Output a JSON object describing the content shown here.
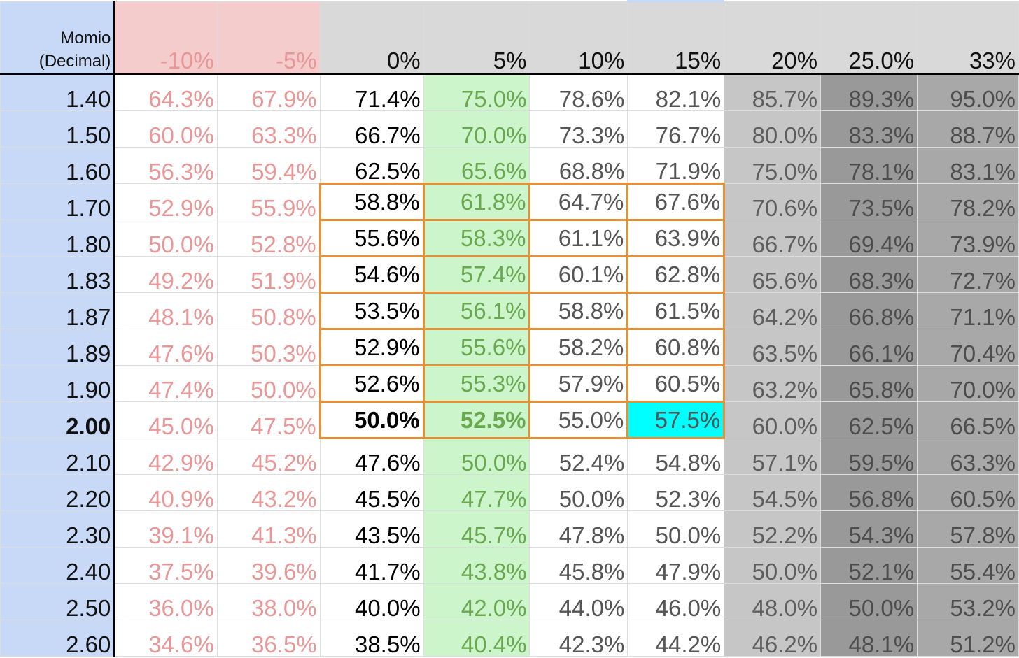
{
  "header": {
    "label_line1": "Momio",
    "label_line2": "(Decimal)",
    "columns": [
      "-10%",
      "-5%",
      "0%",
      "5%",
      "10%",
      "15%",
      "20%",
      "25.0%",
      "33%"
    ]
  },
  "rows": [
    {
      "odds": "1.40",
      "values": [
        "64.3%",
        "67.9%",
        "71.4%",
        "75.0%",
        "78.6%",
        "82.1%",
        "85.7%",
        "89.3%",
        "95.0%"
      ]
    },
    {
      "odds": "1.50",
      "values": [
        "60.0%",
        "63.3%",
        "66.7%",
        "70.0%",
        "73.3%",
        "76.7%",
        "80.0%",
        "83.3%",
        "88.7%"
      ]
    },
    {
      "odds": "1.60",
      "values": [
        "56.3%",
        "59.4%",
        "62.5%",
        "65.6%",
        "68.8%",
        "71.9%",
        "75.0%",
        "78.1%",
        "83.1%"
      ]
    },
    {
      "odds": "1.70",
      "values": [
        "52.9%",
        "55.9%",
        "58.8%",
        "61.8%",
        "64.7%",
        "67.6%",
        "70.6%",
        "73.5%",
        "78.2%"
      ]
    },
    {
      "odds": "1.80",
      "values": [
        "50.0%",
        "52.8%",
        "55.6%",
        "58.3%",
        "61.1%",
        "63.9%",
        "66.7%",
        "69.4%",
        "73.9%"
      ]
    },
    {
      "odds": "1.83",
      "values": [
        "49.2%",
        "51.9%",
        "54.6%",
        "57.4%",
        "60.1%",
        "62.8%",
        "65.6%",
        "68.3%",
        "72.7%"
      ]
    },
    {
      "odds": "1.87",
      "values": [
        "48.1%",
        "50.8%",
        "53.5%",
        "56.1%",
        "58.8%",
        "61.5%",
        "64.2%",
        "66.8%",
        "71.1%"
      ]
    },
    {
      "odds": "1.89",
      "values": [
        "47.6%",
        "50.3%",
        "52.9%",
        "55.6%",
        "58.2%",
        "60.8%",
        "63.5%",
        "66.1%",
        "70.4%"
      ]
    },
    {
      "odds": "1.90",
      "values": [
        "47.4%",
        "50.0%",
        "52.6%",
        "55.3%",
        "57.9%",
        "60.5%",
        "63.2%",
        "65.8%",
        "70.0%"
      ]
    },
    {
      "odds": "2.00",
      "values": [
        "45.0%",
        "47.5%",
        "50.0%",
        "52.5%",
        "55.0%",
        "57.5%",
        "60.0%",
        "62.5%",
        "66.5%"
      ]
    },
    {
      "odds": "2.10",
      "values": [
        "42.9%",
        "45.2%",
        "47.6%",
        "50.0%",
        "52.4%",
        "54.8%",
        "57.1%",
        "59.5%",
        "63.3%"
      ]
    },
    {
      "odds": "2.20",
      "values": [
        "40.9%",
        "43.2%",
        "45.5%",
        "47.7%",
        "50.0%",
        "52.3%",
        "54.5%",
        "56.8%",
        "60.5%"
      ]
    },
    {
      "odds": "2.30",
      "values": [
        "39.1%",
        "41.3%",
        "43.5%",
        "45.7%",
        "47.8%",
        "50.0%",
        "52.2%",
        "54.3%",
        "57.8%"
      ]
    },
    {
      "odds": "2.40",
      "values": [
        "37.5%",
        "39.6%",
        "41.7%",
        "43.8%",
        "45.8%",
        "47.9%",
        "50.0%",
        "52.1%",
        "55.4%"
      ]
    },
    {
      "odds": "2.50",
      "values": [
        "36.0%",
        "38.0%",
        "40.0%",
        "42.0%",
        "44.0%",
        "46.0%",
        "48.0%",
        "50.0%",
        "53.2%"
      ]
    },
    {
      "odds": "2.60",
      "values": [
        "34.6%",
        "36.5%",
        "38.5%",
        "40.4%",
        "42.3%",
        "44.2%",
        "46.2%",
        "48.1%",
        "51.2%"
      ]
    }
  ],
  "highlight": {
    "outlined_rows": [
      "1.70",
      "1.80",
      "1.83",
      "1.87",
      "1.89",
      "1.90",
      "2.00"
    ],
    "outlined_columns": [
      "0%",
      "5%",
      "10%",
      "15%"
    ],
    "outline_color": "#e69138",
    "bold_row": "2.00",
    "selected_cell": {
      "row": "2.00",
      "column": "15%"
    },
    "selected_cell_color": "#00ffff"
  },
  "colors": {
    "odds_column_bg": "#c8d9f7",
    "negative_columns_header_bg": "#f4cccc",
    "negative_columns_text": "#e89696",
    "column_5pct_bg": "#ccf5cc",
    "column_5pct_text": "#6aa84f",
    "header_bg": "#d9d9d9"
  }
}
